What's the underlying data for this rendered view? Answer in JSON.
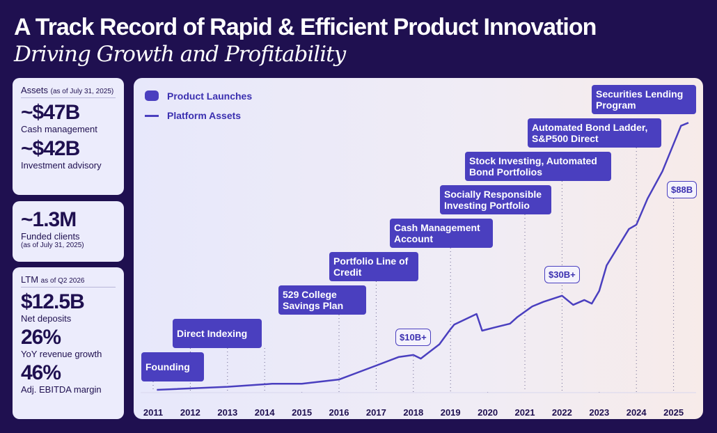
{
  "header": {
    "title": "A Track Record of Rapid & Efficient Product Innovation",
    "subtitle": "Driving Growth and Profitability"
  },
  "assets_panel": {
    "heading": "Assets",
    "note": "(as of July 31, 2025)",
    "items": [
      {
        "value": "~$47B",
        "label": "Cash management"
      },
      {
        "value": "~$42B",
        "label": "Investment advisory"
      }
    ]
  },
  "clients_panel": {
    "value": "~1.3M",
    "label": "Funded clients",
    "note": "(as of July 31, 2025)"
  },
  "ltm_panel": {
    "heading": "LTM",
    "note": "as of Q2 2026",
    "items": [
      {
        "value": "$12.5B",
        "label": "Net deposits"
      },
      {
        "value": "26%",
        "label": "YoY revenue growth"
      },
      {
        "value": "46%",
        "label": "Adj. EBITDA margin"
      }
    ]
  },
  "colors": {
    "background": "#1f1050",
    "accent": "#4a3fbf",
    "panel": "#ececfc"
  },
  "chart_data": {
    "type": "line",
    "legend": [
      "Product Launches",
      "Platform Assets"
    ],
    "legend_placement": "top-left",
    "x_ticks": [
      "2011",
      "2012",
      "2013",
      "2014",
      "2015",
      "2016",
      "2017",
      "2018",
      "2019",
      "2020",
      "2021",
      "2022",
      "2023",
      "2024",
      "2025"
    ],
    "series": [
      {
        "name": "Platform Assets",
        "unit": "$B",
        "points": [
          [
            2011.1,
            0
          ],
          [
            2013,
            1
          ],
          [
            2014.2,
            2
          ],
          [
            2015,
            2
          ],
          [
            2016,
            3.4
          ],
          [
            2017,
            8
          ],
          [
            2017.6,
            10.8
          ],
          [
            2018,
            11.5
          ],
          [
            2018.2,
            10.3
          ],
          [
            2018.7,
            15
          ],
          [
            2019,
            20
          ],
          [
            2019.1,
            21.5
          ],
          [
            2019.7,
            25
          ],
          [
            2019.85,
            19.5
          ],
          [
            2020.2,
            20.6
          ],
          [
            2020.6,
            21.8
          ],
          [
            2020.8,
            24
          ],
          [
            2021.2,
            27.5
          ],
          [
            2021.5,
            29
          ],
          [
            2022,
            31
          ],
          [
            2022.3,
            28
          ],
          [
            2022.6,
            29.6
          ],
          [
            2022.8,
            28.4
          ],
          [
            2023,
            32.6
          ],
          [
            2023.2,
            41
          ],
          [
            2023.5,
            47
          ],
          [
            2023.8,
            53
          ],
          [
            2024,
            54.4
          ],
          [
            2024.3,
            63
          ],
          [
            2024.7,
            72
          ],
          [
            2025,
            81
          ],
          [
            2025.2,
            87
          ],
          [
            2025.4,
            88
          ]
        ]
      }
    ],
    "launches": [
      {
        "year": 2011,
        "label": "Founding"
      },
      {
        "year": 2013,
        "label": "Direct Indexing"
      },
      {
        "year": 2016,
        "label": "529 College Savings Plan"
      },
      {
        "year": 2017,
        "label": "Portfolio Line of Credit"
      },
      {
        "year": 2019,
        "label": "Cash Management Account"
      },
      {
        "year": 2021,
        "label": "Socially Responsible Investing Portfolio"
      },
      {
        "year": 2022,
        "label": "Stock Investing, Automated Bond Portfolios"
      },
      {
        "year": 2024,
        "label": "Automated Bond Ladder, S&P500 Direct"
      },
      {
        "year": 2025,
        "label": "Securities Lending Program"
      }
    ],
    "annotations": [
      {
        "year": 2018,
        "label": "$10B+"
      },
      {
        "year": 2022,
        "label": "$30B+"
      },
      {
        "year": 2025,
        "label": "$88B"
      }
    ]
  }
}
